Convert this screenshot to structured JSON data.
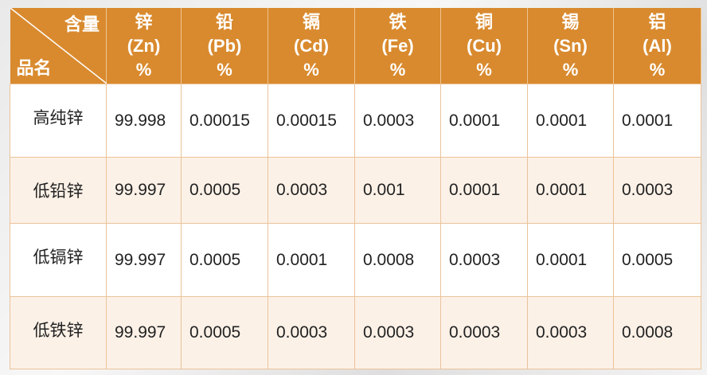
{
  "table": {
    "corner": {
      "top": "含量",
      "bottom": "品名"
    },
    "columns": [
      [
        "锌",
        "(Zn)",
        "%"
      ],
      [
        "铅",
        "(Pb)",
        "%"
      ],
      [
        "镉",
        "(Cd)",
        "%"
      ],
      [
        "铁",
        "(Fe)",
        "%"
      ],
      [
        "铜",
        "(Cu)",
        "%"
      ],
      [
        "锡",
        "(Sn)",
        "%"
      ],
      [
        "铝",
        "(Al)",
        "%"
      ]
    ],
    "rows": [
      [
        "高纯锌",
        "99.998",
        "0.00015",
        "0.00015",
        "0.0003",
        "0.0001",
        "0.0001",
        "0.0001"
      ],
      [
        "低铅锌",
        "99.997",
        "0.0005",
        "0.0003",
        "0.001",
        "0.0001",
        "0.0001",
        "0.0003"
      ],
      [
        "低镉锌",
        "99.997",
        "0.0005",
        "0.0001",
        "0.0008",
        "0.0003",
        "0.0001",
        "0.0005"
      ],
      [
        "低铁锌",
        "99.997",
        "0.0005",
        "0.0003",
        "0.0003",
        "0.0003",
        "0.0003",
        "0.0008"
      ]
    ]
  }
}
